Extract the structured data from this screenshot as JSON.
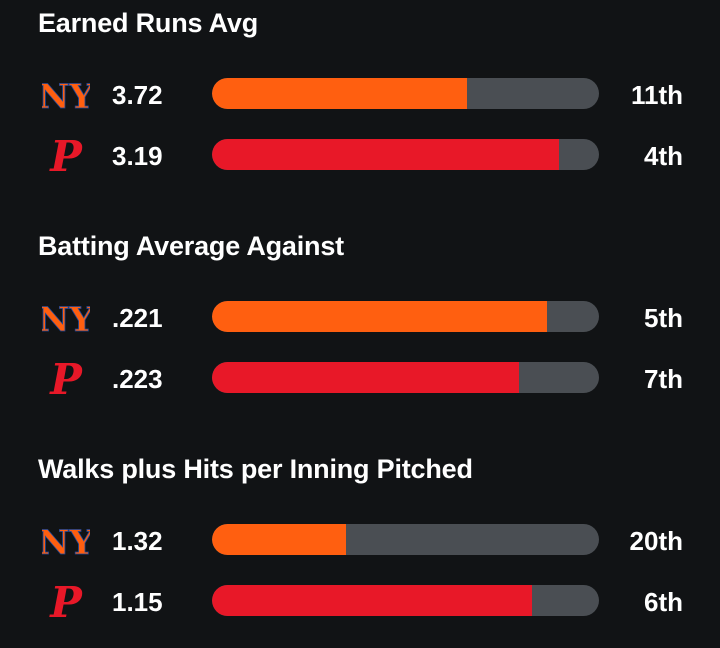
{
  "colors": {
    "background": "#111315",
    "track": "#4a4e53",
    "mets": "#ff5f10",
    "phillies": "#e81828"
  },
  "sections": [
    {
      "title": "Earned Runs Avg",
      "rows": [
        {
          "team_icon": "mets-logo-icon",
          "value": "3.72",
          "rank": "11th",
          "fill": 0.66
        },
        {
          "team_icon": "phillies-logo-icon",
          "value": "3.19",
          "rank": "4th",
          "fill": 0.897
        }
      ]
    },
    {
      "title": "Batting Average Against",
      "rows": [
        {
          "team_icon": "mets-logo-icon",
          "value": ".221",
          "rank": "5th",
          "fill": 0.865
        },
        {
          "team_icon": "phillies-logo-icon",
          "value": ".223",
          "rank": "7th",
          "fill": 0.793
        }
      ]
    },
    {
      "title": "Walks plus Hits per Inning Pitched",
      "rows": [
        {
          "team_icon": "mets-logo-icon",
          "value": "1.32",
          "rank": "20th",
          "fill": 0.346
        },
        {
          "team_icon": "phillies-logo-icon",
          "value": "1.15",
          "rank": "6th",
          "fill": 0.828
        }
      ]
    }
  ]
}
